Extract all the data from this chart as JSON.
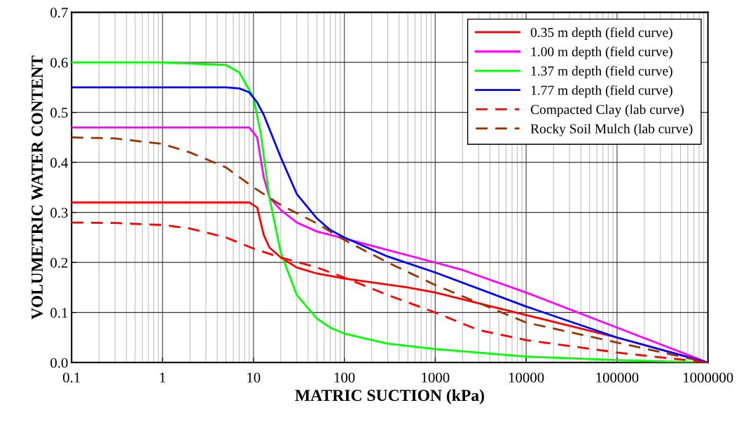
{
  "chart_data": {
    "type": "line",
    "xlabel": "MATRIC SUCTION (kPa)",
    "ylabel": "VOLUMETRIC WATER CONTENT",
    "log": "x",
    "grid": true,
    "legend": "top right",
    "xlim": [
      0.1,
      1000000
    ],
    "xticks": [
      0.1,
      1,
      10,
      100,
      1000,
      10000,
      100000,
      1000000
    ],
    "ylim": [
      0,
      0.7
    ],
    "yticks": [
      {
        "value": 0,
        "label": "0.0"
      },
      0.1,
      0.2,
      0.3,
      0.4,
      0.5,
      0.6,
      0.7
    ],
    "series": [
      {
        "name": "0.35 m depth (field curve)",
        "color": "#ff0000",
        "line_style": "solid",
        "x": [
          0.1,
          9,
          11,
          13,
          15,
          20,
          30,
          50,
          100,
          500,
          1000,
          10000,
          100000,
          1000000
        ],
        "values": [
          0.32,
          0.32,
          0.31,
          0.255,
          0.23,
          0.21,
          0.19,
          0.178,
          0.168,
          0.15,
          0.14,
          0.095,
          0.05,
          0
        ]
      },
      {
        "name": "1.00 m depth (field curve)",
        "color": "#ff00ff",
        "line_style": "solid",
        "x": [
          0.1,
          9,
          11,
          13,
          15,
          20,
          30,
          50,
          100,
          1000,
          2000,
          10000,
          100000,
          1000000
        ],
        "values": [
          0.47,
          0.47,
          0.45,
          0.37,
          0.33,
          0.305,
          0.28,
          0.262,
          0.248,
          0.2,
          0.185,
          0.14,
          0.07,
          0
        ]
      },
      {
        "name": "1.37 m depth (field curve)",
        "color": "#00ff00",
        "line_style": "solid",
        "x": [
          0.1,
          1,
          5,
          7,
          10,
          12,
          15,
          20,
          30,
          50,
          70,
          100,
          300,
          1000,
          10000,
          100000,
          1000000
        ],
        "values": [
          0.6,
          0.6,
          0.595,
          0.58,
          0.53,
          0.46,
          0.33,
          0.22,
          0.135,
          0.088,
          0.07,
          0.058,
          0.038,
          0.027,
          0.012,
          0.005,
          0
        ]
      },
      {
        "name": "1.77 m depth (field curve)",
        "color": "#0000ff",
        "line_style": "solid",
        "x": [
          0.1,
          5,
          7,
          9,
          11,
          13,
          20,
          30,
          50,
          70,
          100,
          300,
          1000,
          10000,
          100000,
          1000000
        ],
        "values": [
          0.55,
          0.55,
          0.548,
          0.54,
          0.52,
          0.495,
          0.41,
          0.337,
          0.288,
          0.265,
          0.25,
          0.212,
          0.18,
          0.112,
          0.05,
          0
        ]
      },
      {
        "name": "Compacted Clay (lab curve)",
        "color": "#ff0000",
        "line_style": "dashed",
        "x": [
          0.1,
          0.3,
          1,
          2,
          5,
          10,
          20,
          50,
          100,
          300,
          1000,
          3000,
          10000,
          100000,
          1000000
        ],
        "values": [
          0.28,
          0.279,
          0.275,
          0.268,
          0.25,
          0.228,
          0.21,
          0.19,
          0.17,
          0.135,
          0.1,
          0.065,
          0.045,
          0.02,
          0
        ]
      },
      {
        "name": "Rocky Soil Mulch (lab curve)",
        "color": "#993300",
        "line_style": "dashed",
        "x": [
          0.1,
          0.3,
          1,
          2,
          5,
          10,
          20,
          50,
          100,
          300,
          1000,
          10000,
          100000,
          1000000
        ],
        "values": [
          0.45,
          0.448,
          0.437,
          0.42,
          0.39,
          0.35,
          0.315,
          0.278,
          0.245,
          0.2,
          0.155,
          0.08,
          0.04,
          0
        ]
      }
    ]
  }
}
